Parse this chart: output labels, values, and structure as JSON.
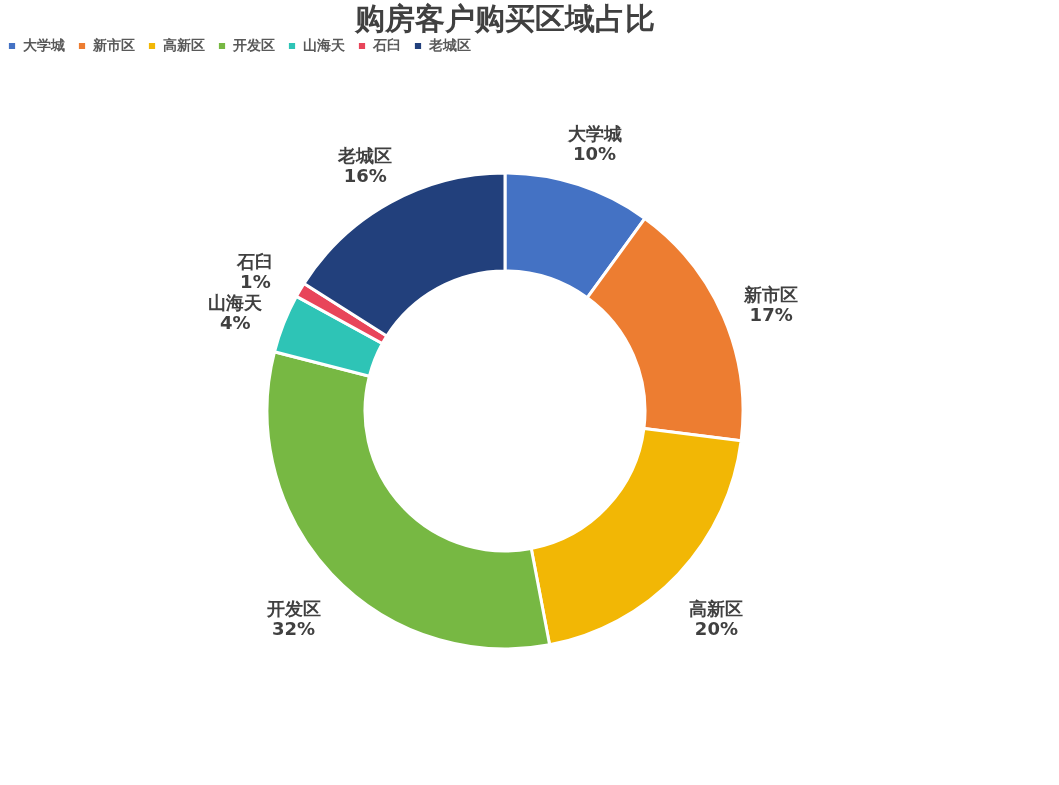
{
  "chart_data": {
    "type": "donut",
    "title": "购房客户购买区域占比",
    "categories": [
      "大学城",
      "新市区",
      "高新区",
      "开发区",
      "山海天",
      "石臼",
      "老城区"
    ],
    "values": [
      10,
      17,
      20,
      32,
      4,
      1,
      16
    ],
    "value_labels": [
      "10%",
      "17%",
      "20%",
      "32%",
      "4%",
      "1%",
      "16%"
    ],
    "colors": [
      "#4472c4",
      "#ed7d31",
      "#f2b705",
      "#77b843",
      "#2ec4b6",
      "#e8455a",
      "#22407c"
    ],
    "legend": "top"
  }
}
